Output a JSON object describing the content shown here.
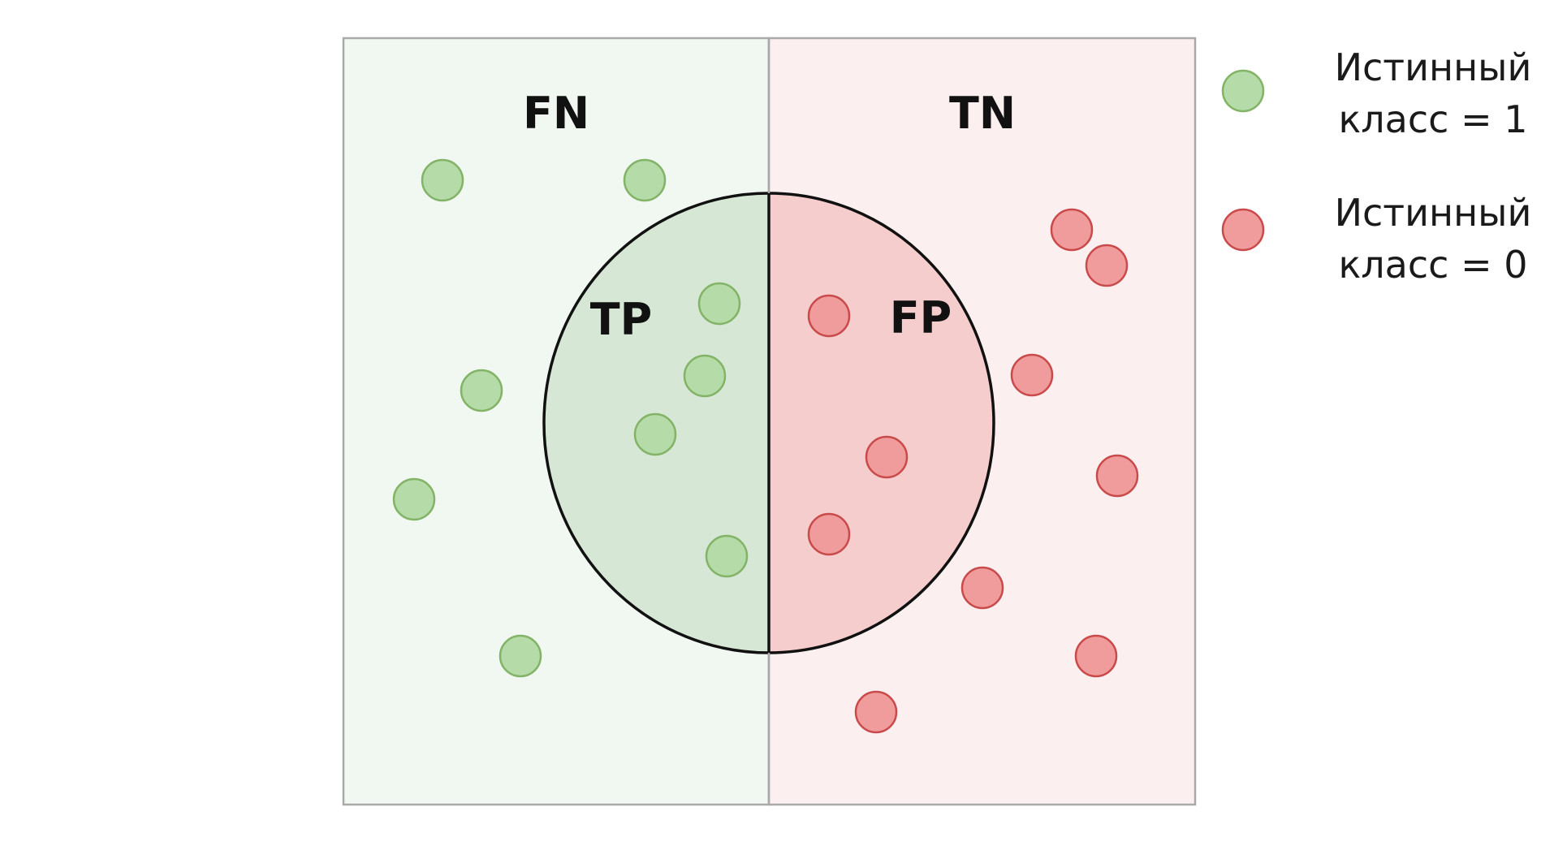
{
  "colors": {
    "background": "#ffffff",
    "left_panel_fill": "#f1f7f1",
    "right_panel_fill": "#fcefef",
    "panel_border": "#a9a9a9",
    "circle_left_fill": "#d6e8d5",
    "circle_right_fill": "#f5cdcd",
    "circle_stroke": "#111111",
    "green_dot_fill": "#b4dba8",
    "green_dot_stroke": "#82b366",
    "red_dot_fill": "#f19c9c",
    "red_dot_stroke": "#c94a4a"
  },
  "regions": {
    "fn": "FN",
    "tn": "TN",
    "tp": "TP",
    "fp": "FP"
  },
  "legend": {
    "positive": {
      "icon": "green-circle-icon",
      "line1": "Истинный",
      "line2": "класс = 1"
    },
    "negative": {
      "icon": "red-circle-icon",
      "line1": "Истинный",
      "line2": "класс = 0"
    }
  }
}
